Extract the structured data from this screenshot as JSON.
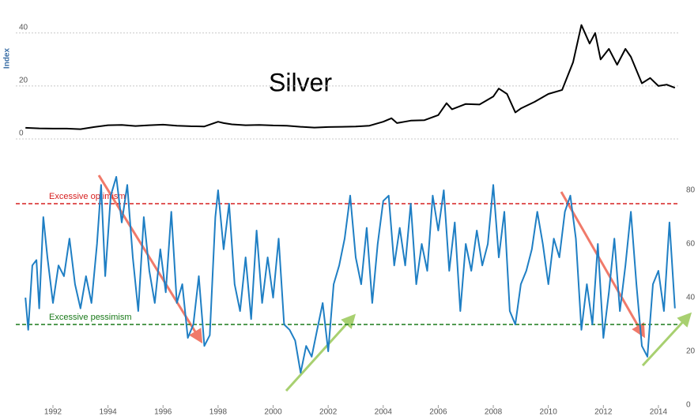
{
  "chart_data": [
    {
      "type": "line",
      "title": "Silver",
      "ylabel": "Index",
      "color": "#000000",
      "xlim": [
        1990.65,
        2014.72
      ],
      "ylim": [
        0,
        45
      ],
      "yticks": [
        0,
        20,
        40
      ],
      "grid": true,
      "x": [
        1991.0,
        1991.5,
        1992.0,
        1992.5,
        1993.0,
        1993.5,
        1994.0,
        1994.5,
        1995.0,
        1995.5,
        1996.0,
        1996.5,
        1997.0,
        1997.5,
        1998.0,
        1998.2,
        1998.5,
        1999.0,
        1999.5,
        2000.0,
        2000.5,
        2001.0,
        2001.5,
        2002.0,
        2002.5,
        2003.0,
        2003.5,
        2004.0,
        2004.3,
        2004.5,
        2005.0,
        2005.5,
        2006.0,
        2006.3,
        2006.5,
        2007.0,
        2007.5,
        2008.0,
        2008.2,
        2008.5,
        2008.8,
        2009.0,
        2009.5,
        2010.0,
        2010.5,
        2010.9,
        2011.2,
        2011.5,
        2011.7,
        2011.9,
        2012.2,
        2012.5,
        2012.8,
        2013.0,
        2013.4,
        2013.7,
        2014.0,
        2014.3,
        2014.6
      ],
      "values": [
        4.2,
        4.0,
        3.9,
        3.9,
        3.7,
        4.5,
        5.2,
        5.3,
        4.9,
        5.2,
        5.4,
        5.0,
        4.8,
        4.7,
        6.5,
        6.0,
        5.5,
        5.2,
        5.3,
        5.1,
        5.0,
        4.6,
        4.3,
        4.5,
        4.6,
        4.7,
        5.0,
        6.5,
        7.8,
        6.0,
        6.9,
        7.1,
        9.0,
        13.5,
        11.2,
        13.2,
        13.0,
        16.0,
        19.0,
        17.0,
        10.0,
        11.5,
        14.0,
        17.0,
        18.5,
        29.0,
        43.0,
        36.0,
        40.0,
        30.0,
        34.0,
        28.0,
        34.0,
        31.0,
        21.0,
        23.0,
        20.0,
        20.5,
        19.3
      ]
    },
    {
      "type": "line",
      "color": "#1f7fc4",
      "xlim": [
        1990.65,
        2014.72
      ],
      "xticks": [
        1992,
        1994,
        1996,
        1998,
        2000,
        2002,
        2004,
        2006,
        2008,
        2010,
        2012,
        2014
      ],
      "ylim": [
        0,
        90
      ],
      "yticks": [
        0,
        20,
        40,
        60,
        80
      ],
      "grid": false,
      "reference_lines": [
        {
          "label": "Excessive optimism",
          "value": 75,
          "color": "#d62020"
        },
        {
          "label": "Excessive pessimism",
          "value": 30,
          "color": "#1a7a1a"
        }
      ],
      "x": [
        1991.0,
        1991.1,
        1991.25,
        1991.4,
        1991.5,
        1991.65,
        1991.8,
        1992.0,
        1992.2,
        1992.4,
        1992.6,
        1992.8,
        1993.0,
        1993.2,
        1993.4,
        1993.6,
        1993.75,
        1993.9,
        1994.1,
        1994.3,
        1994.5,
        1994.7,
        1994.9,
        1995.1,
        1995.3,
        1995.5,
        1995.7,
        1995.9,
        1996.1,
        1996.3,
        1996.5,
        1996.7,
        1996.9,
        1997.1,
        1997.3,
        1997.5,
        1997.7,
        1997.9,
        1998.0,
        1998.2,
        1998.4,
        1998.6,
        1998.8,
        1999.0,
        1999.2,
        1999.4,
        1999.6,
        1999.8,
        2000.0,
        2000.2,
        2000.4,
        2000.6,
        2000.8,
        2001.0,
        2001.2,
        2001.4,
        2001.6,
        2001.8,
        2002.0,
        2002.2,
        2002.4,
        2002.6,
        2002.8,
        2003.0,
        2003.2,
        2003.4,
        2003.6,
        2003.8,
        2004.0,
        2004.2,
        2004.4,
        2004.6,
        2004.8,
        2005.0,
        2005.2,
        2005.4,
        2005.6,
        2005.8,
        2006.0,
        2006.2,
        2006.4,
        2006.6,
        2006.8,
        2007.0,
        2007.2,
        2007.4,
        2007.6,
        2007.8,
        2008.0,
        2008.2,
        2008.4,
        2008.6,
        2008.8,
        2009.0,
        2009.2,
        2009.4,
        2009.6,
        2009.8,
        2010.0,
        2010.2,
        2010.4,
        2010.6,
        2010.8,
        2011.0,
        2011.2,
        2011.4,
        2011.6,
        2011.8,
        2012.0,
        2012.2,
        2012.4,
        2012.6,
        2012.8,
        2013.0,
        2013.2,
        2013.4,
        2013.6,
        2013.8,
        2014.0,
        2014.2,
        2014.4,
        2014.6
      ],
      "values": [
        40,
        28,
        52,
        54,
        36,
        70,
        55,
        38,
        52,
        48,
        62,
        45,
        36,
        48,
        38,
        60,
        82,
        48,
        78,
        85,
        68,
        82,
        55,
        35,
        70,
        50,
        38,
        58,
        42,
        72,
        38,
        45,
        25,
        30,
        48,
        22,
        26,
        70,
        80,
        58,
        75,
        45,
        35,
        55,
        32,
        65,
        38,
        55,
        40,
        62,
        30,
        28,
        24,
        12,
        22,
        18,
        28,
        38,
        20,
        45,
        52,
        62,
        78,
        55,
        45,
        66,
        38,
        60,
        76,
        78,
        52,
        66,
        52,
        75,
        45,
        60,
        50,
        78,
        65,
        80,
        50,
        68,
        35,
        60,
        50,
        65,
        52,
        60,
        82,
        55,
        72,
        35,
        30,
        45,
        50,
        58,
        72,
        60,
        45,
        62,
        55,
        72,
        78,
        62,
        28,
        45,
        30,
        60,
        25,
        42,
        62,
        35,
        52,
        72,
        45,
        22,
        18,
        45,
        50,
        35,
        68,
        36
      ]
    }
  ]
}
